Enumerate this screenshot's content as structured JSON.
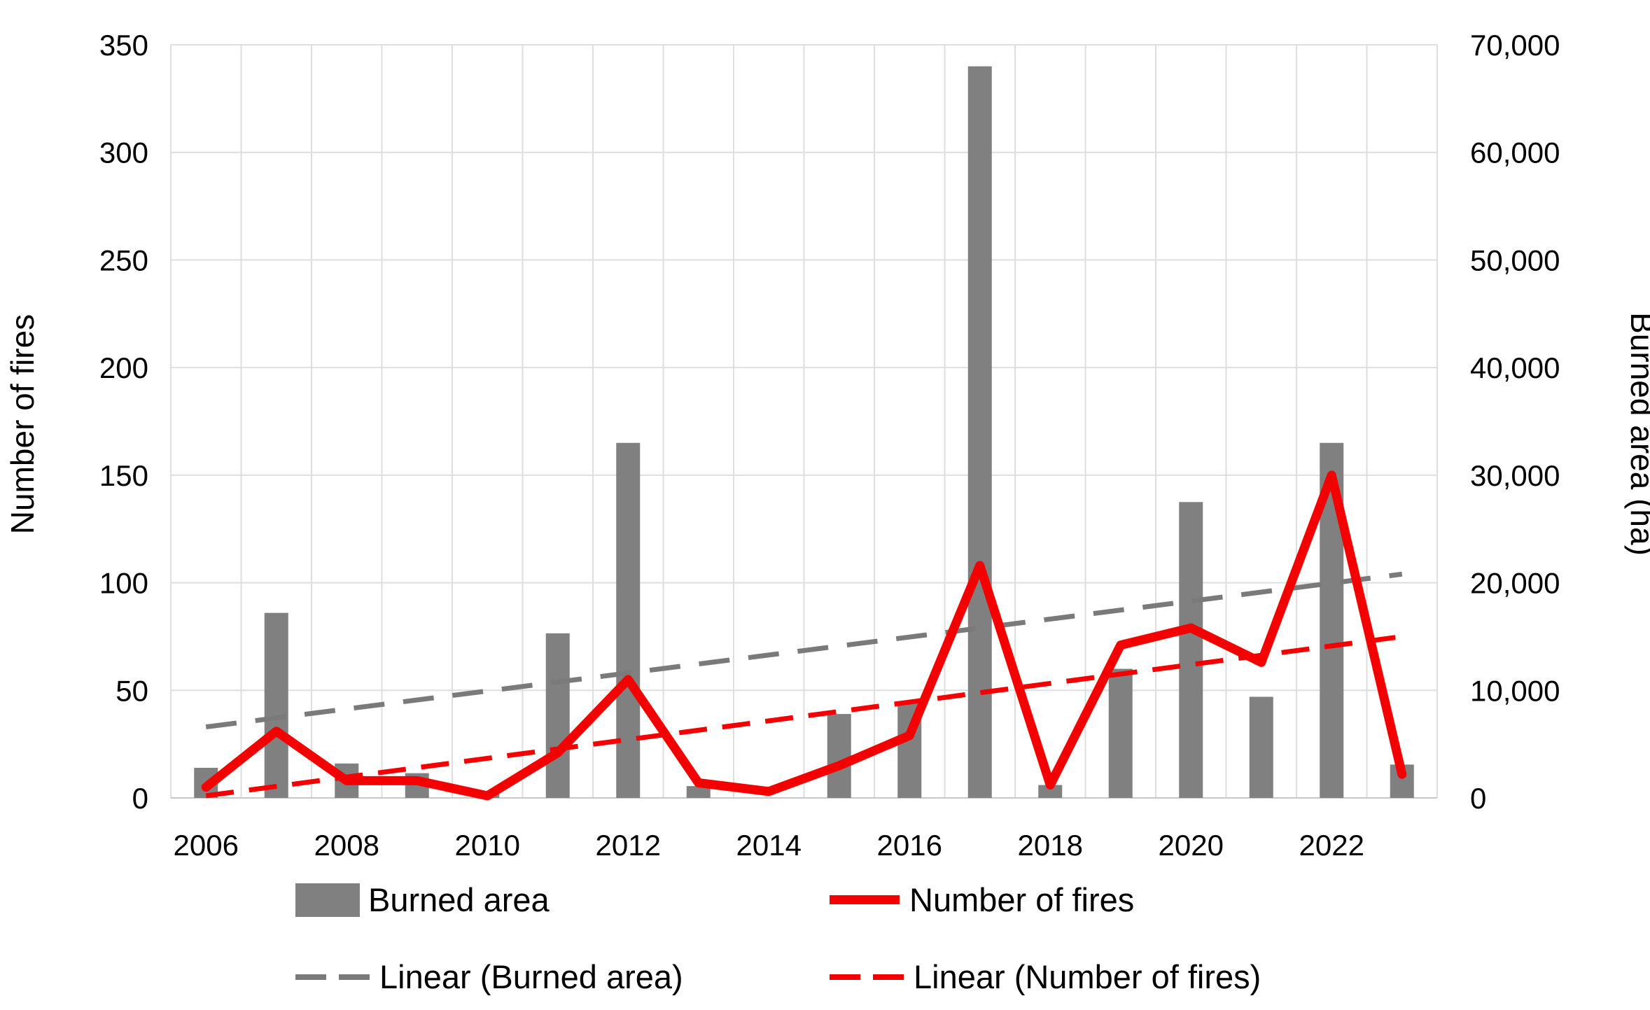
{
  "chart_data": {
    "type": "bar",
    "subtype": "combo-bar-line-dual-axis",
    "categories": [
      2006,
      2007,
      2008,
      2009,
      2010,
      2011,
      2012,
      2013,
      2014,
      2015,
      2016,
      2017,
      2018,
      2019,
      2020,
      2021,
      2022,
      2023
    ],
    "series": [
      {
        "name": "Burned area",
        "type": "bar",
        "axis": "right",
        "color": "#808080",
        "values": [
          2800,
          17200,
          3200,
          2300,
          500,
          15300,
          33000,
          1100,
          0,
          7800,
          9000,
          68000,
          1200,
          12000,
          27500,
          9400,
          33000,
          3100
        ]
      },
      {
        "name": "Number of fires",
        "type": "line",
        "axis": "left",
        "color": "#f40000",
        "values": [
          5,
          31,
          8,
          8,
          1,
          21,
          55,
          7,
          3,
          15,
          29,
          108,
          6,
          71,
          79,
          63,
          150,
          11
        ]
      },
      {
        "name": "Linear (Burned area)",
        "type": "trendline",
        "axis": "right",
        "color": "#7a7a7a",
        "dashed": true,
        "endpoints": [
          6600,
          20800
        ]
      },
      {
        "name": "Linear (Number of fires)",
        "type": "trendline",
        "axis": "left",
        "color": "#f40000",
        "dashed": true,
        "endpoints": [
          1,
          75
        ]
      }
    ],
    "left_axis": {
      "title": "Number of fires",
      "min": 0,
      "max": 350,
      "step": 50,
      "tick_labels": [
        "0",
        "50",
        "100",
        "150",
        "200",
        "250",
        "300",
        "350"
      ]
    },
    "right_axis": {
      "title": "Burned area (ha)",
      "min": 0,
      "max": 70000,
      "step": 10000,
      "tick_labels": [
        "0",
        "10,000",
        "20,000",
        "30,000",
        "40,000",
        "50,000",
        "60,000",
        "70,000"
      ]
    },
    "x_axis": {
      "tick_labels": [
        "2006",
        "2008",
        "2010",
        "2012",
        "2014",
        "2016",
        "2018",
        "2020",
        "2022"
      ],
      "tick_years": [
        2006,
        2008,
        2010,
        2012,
        2014,
        2016,
        2018,
        2020,
        2022
      ]
    },
    "grid": true,
    "legend_position": "bottom",
    "colors": {
      "grid": "#dedede",
      "axis_line": "#c8c8c8",
      "text": "#000000"
    }
  },
  "legend": {
    "items": [
      {
        "label": "Burned area",
        "swatch": "bar",
        "color": "#808080"
      },
      {
        "label": "Number of fires",
        "swatch": "line",
        "color": "#f40000"
      },
      {
        "label": "Linear (Burned area)",
        "swatch": "dash",
        "color": "#7a7a7a"
      },
      {
        "label": "Linear (Number of fires)",
        "swatch": "dash",
        "color": "#f40000"
      }
    ]
  }
}
